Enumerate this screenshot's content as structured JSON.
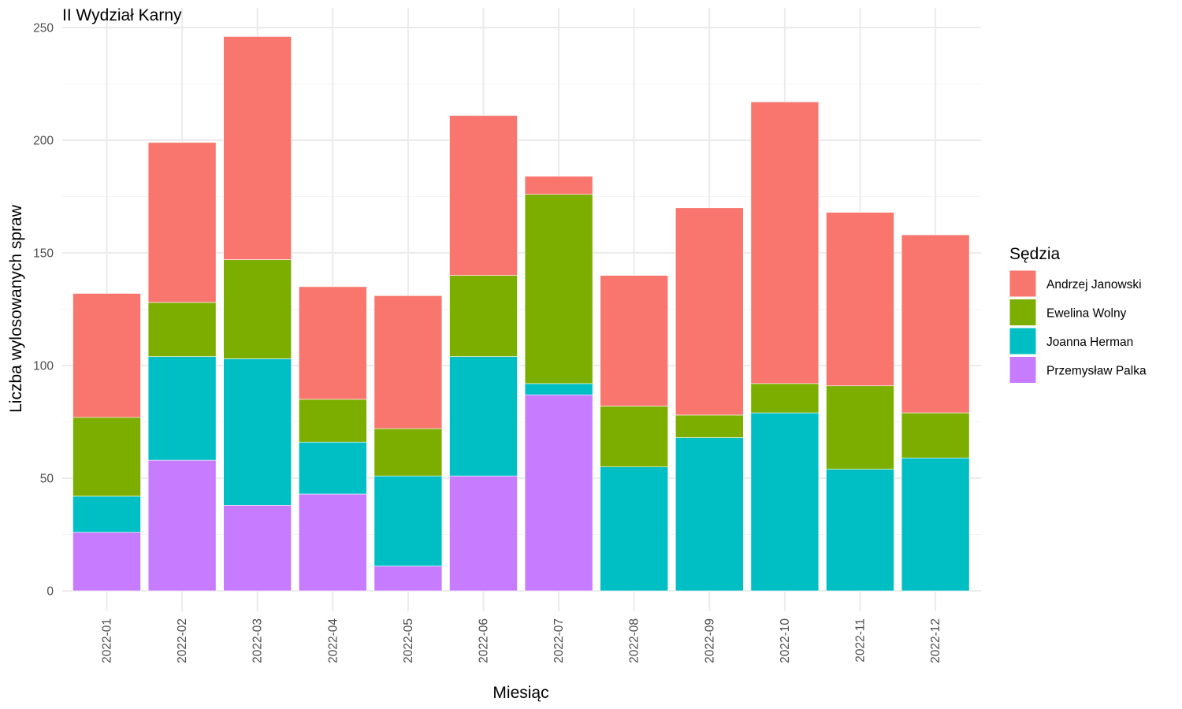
{
  "chart_data": {
    "type": "bar",
    "stacked": true,
    "title": "II Wydział Karny",
    "xlabel": "Miesiąc",
    "ylabel": "Liczba wylosowanych spraw",
    "ylim": [
      0,
      250
    ],
    "yticks": [
      0,
      50,
      100,
      150,
      200,
      250
    ],
    "grid": true,
    "legend": {
      "title": "Sędzia",
      "position": "right"
    },
    "categories": [
      "2022-01",
      "2022-02",
      "2022-03",
      "2022-04",
      "2022-05",
      "2022-06",
      "2022-07",
      "2022-08",
      "2022-09",
      "2022-10",
      "2022-11",
      "2022-12"
    ],
    "series": [
      {
        "name": "Przemysław Palka",
        "color": "#C77CFF",
        "values": [
          26,
          58,
          38,
          43,
          11,
          51,
          87,
          0,
          0,
          0,
          0,
          0
        ]
      },
      {
        "name": "Joanna Herman",
        "color": "#00BFC4",
        "values": [
          16,
          46,
          65,
          23,
          40,
          53,
          5,
          55,
          68,
          79,
          54,
          59
        ]
      },
      {
        "name": "Ewelina Wolny",
        "color": "#7CAE00",
        "values": [
          35,
          24,
          44,
          19,
          21,
          36,
          84,
          27,
          10,
          13,
          37,
          20
        ]
      },
      {
        "name": "Andrzej Janowski",
        "color": "#F8766D",
        "values": [
          55,
          71,
          99,
          50,
          59,
          71,
          8,
          58,
          92,
          125,
          77,
          79
        ]
      }
    ]
  }
}
